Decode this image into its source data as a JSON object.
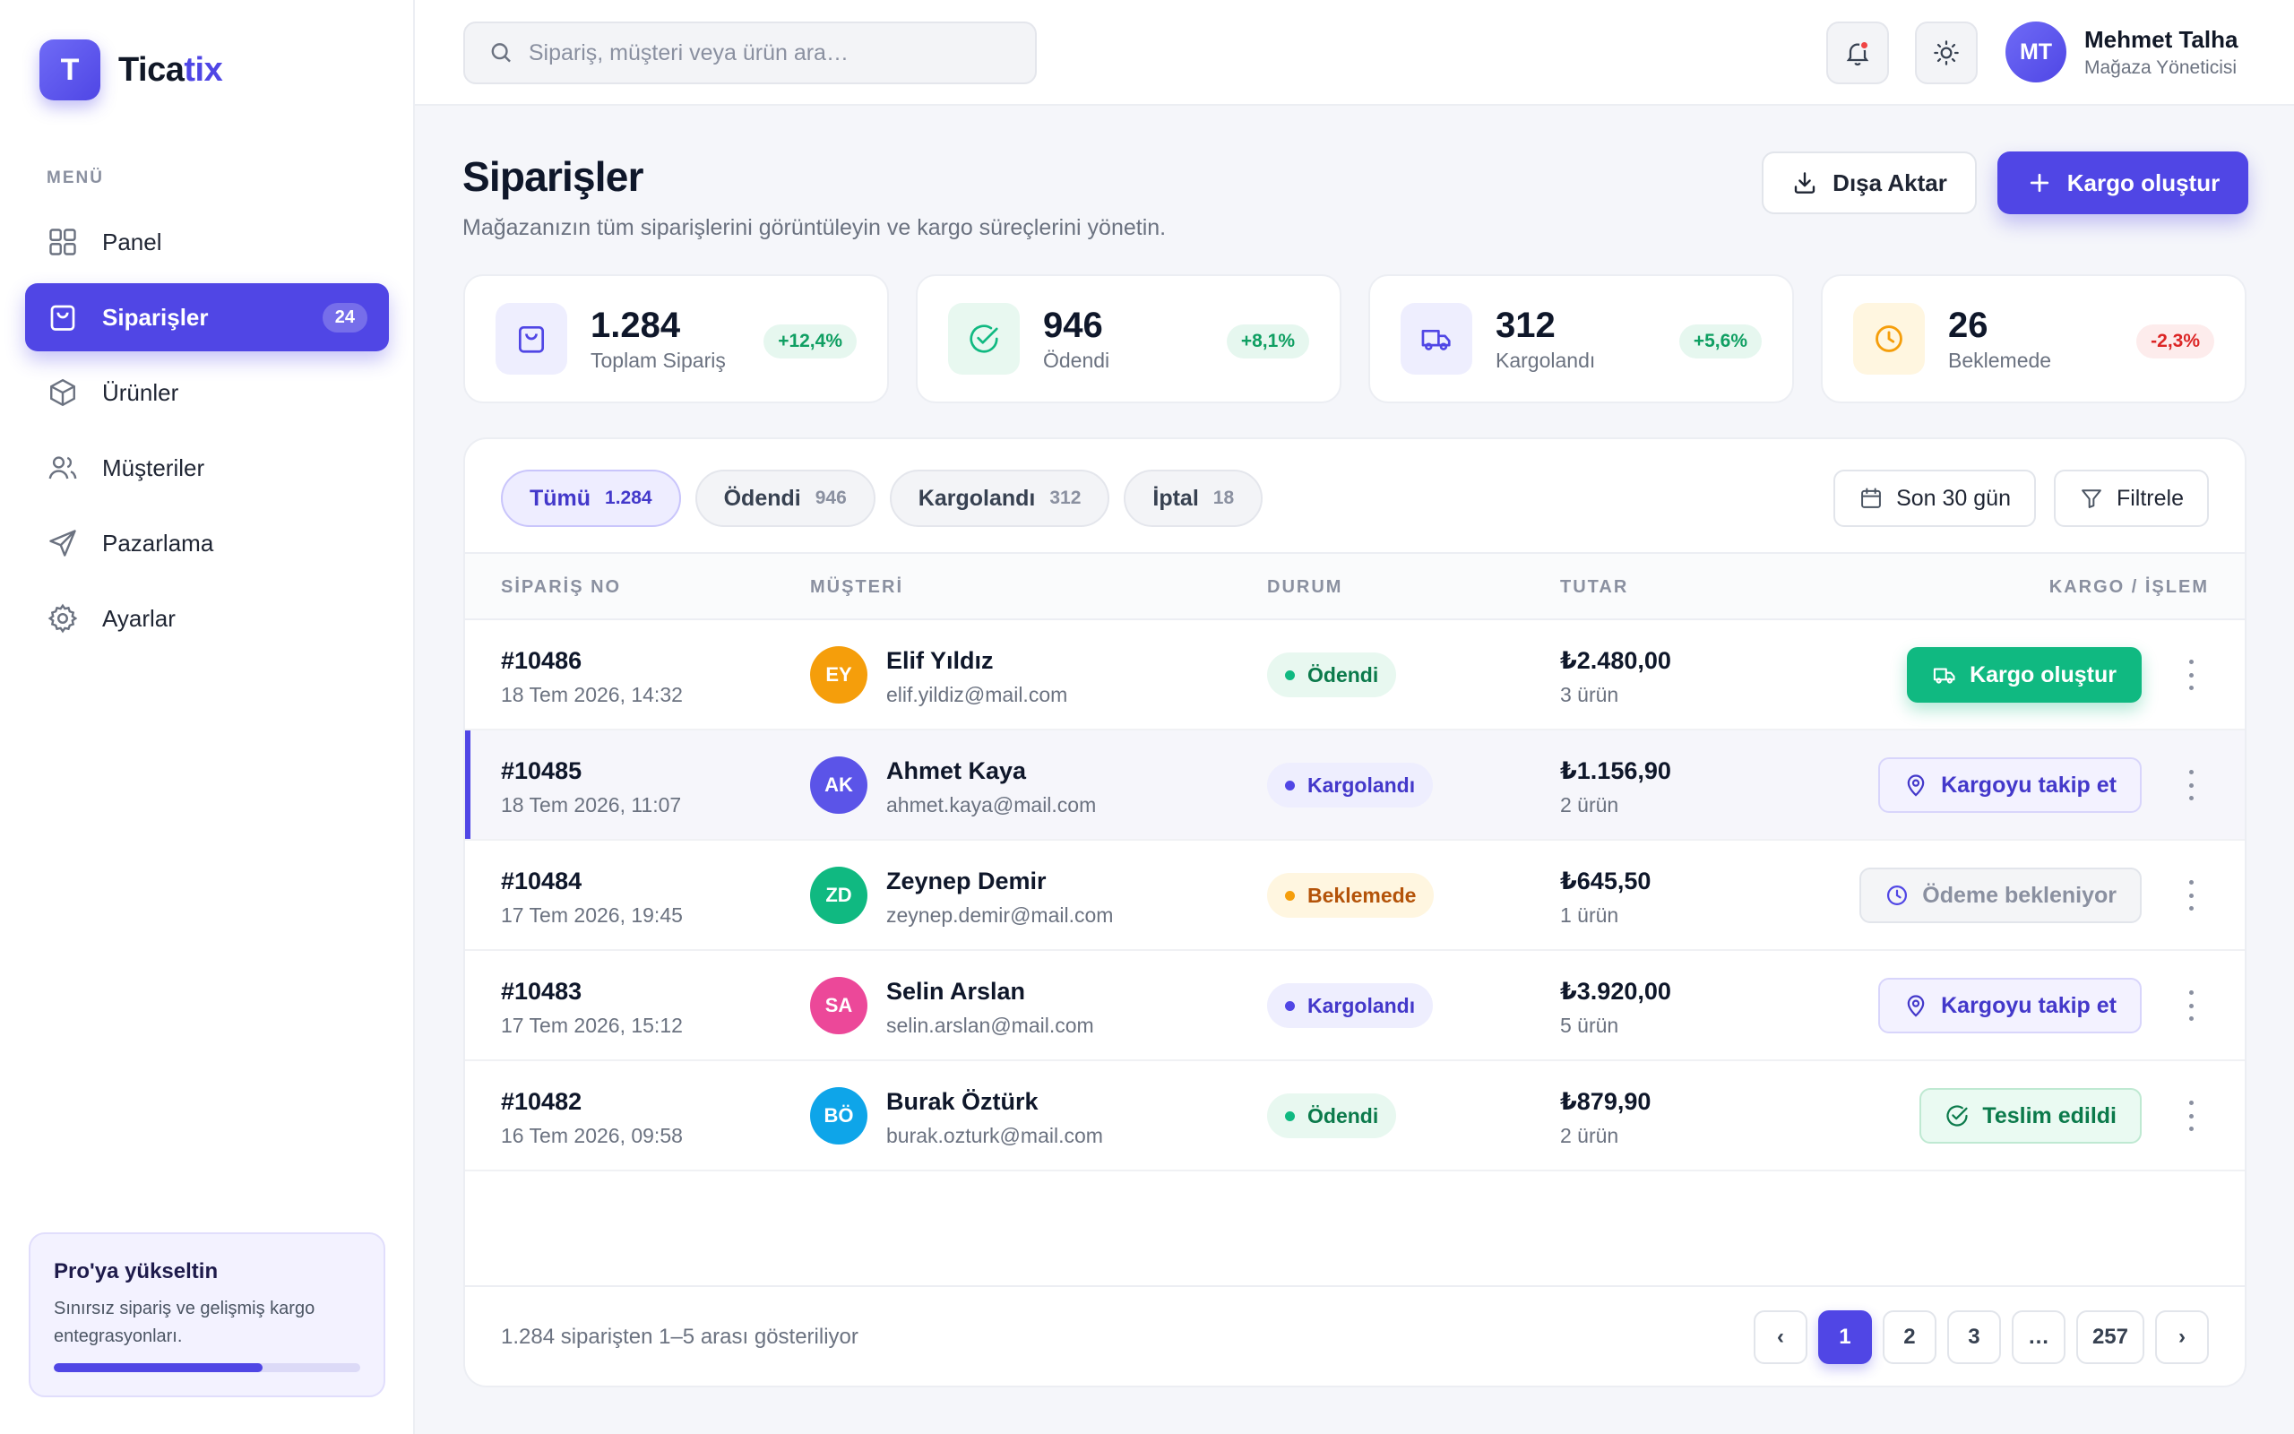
{
  "brand": {
    "mark": "T",
    "name_main": "Tica",
    "name_accent": "tix",
    "accent_color": "#4f46e5"
  },
  "sidebar": {
    "caption": "MENÜ",
    "items": [
      {
        "label": "Panel",
        "icon": "grid-icon"
      },
      {
        "label": "Siparişler",
        "icon": "shopping-bag-icon",
        "badge": "24",
        "active": true
      },
      {
        "label": "Ürünler",
        "icon": "box-icon"
      },
      {
        "label": "Müşteriler",
        "icon": "users-icon"
      },
      {
        "label": "Pazarlama",
        "icon": "send-icon"
      },
      {
        "label": "Ayarlar",
        "icon": "gear-icon"
      }
    ],
    "promo": {
      "title": "Pro'ya yükseltin",
      "text": "Sınırsız sipariş ve gelişmiş kargo entegrasyonları.",
      "progress": 0.68
    }
  },
  "topbar": {
    "search_placeholder": "Sipariş, müşteri veya ürün ara…",
    "user": {
      "initials": "MT",
      "name": "Mehmet Talha",
      "role": "Mağaza Yöneticisi"
    }
  },
  "page": {
    "title": "Siparişler",
    "subtitle": "Mağazanızın tüm siparişlerini görüntüleyin ve kargo süreçlerini yönetin.",
    "export_label": "Dışa Aktar",
    "primary_label": "Kargo oluştur"
  },
  "stats": [
    {
      "value": "1.284",
      "label": "Toplam Sipariş",
      "delta": "+12,4%",
      "trend": "up",
      "icon": "shopping-bag-icon",
      "color": "#5046e5"
    },
    {
      "value": "946",
      "label": "Ödendi",
      "delta": "+8,1%",
      "trend": "up",
      "icon": "check-circle-icon",
      "color": "#10b981"
    },
    {
      "value": "312",
      "label": "Kargolandı",
      "delta": "+5,6%",
      "trend": "up",
      "icon": "truck-icon",
      "color": "#5046e5"
    },
    {
      "value": "26",
      "label": "Beklemede",
      "delta": "-2,3%",
      "trend": "down",
      "icon": "clock-icon",
      "color": "#f59e0b"
    }
  ],
  "tabs": [
    {
      "label": "Tümü",
      "count": "1.284",
      "active": true
    },
    {
      "label": "Ödendi",
      "count": "946"
    },
    {
      "label": "Kargolandı",
      "count": "312"
    },
    {
      "label": "İptal",
      "count": "18"
    }
  ],
  "tools": {
    "date_range": "Son 30 gün",
    "filter": "Filtrele"
  },
  "table": {
    "headers": {
      "order": "SİPARİŞ NO",
      "customer": "MÜŞTERİ",
      "status": "DURUM",
      "amount": "TUTAR",
      "action": "KARGO / İŞLEM"
    },
    "rows": [
      {
        "order_no": "#10486",
        "date": "18 Tem 2026, 14:32",
        "initials": "EY",
        "avatar_color": "#f59e0b",
        "name": "Elif Yıldız",
        "email": "elif.yildiz@mail.com",
        "status": "Ödendi",
        "status_kind": "paid",
        "amount": "₺2.480,00",
        "items": "3 ürün",
        "action": "Kargo oluştur",
        "action_kind": "create"
      },
      {
        "order_no": "#10485",
        "date": "18 Tem 2026, 11:07",
        "initials": "AK",
        "avatar_color": "#5b54e8",
        "name": "Ahmet Kaya",
        "email": "ahmet.kaya@mail.com",
        "status": "Kargolandı",
        "status_kind": "shipped",
        "amount": "₺1.156,90",
        "items": "2 ürün",
        "action": "Kargoyu takip et",
        "action_kind": "track",
        "selected": true
      },
      {
        "order_no": "#10484",
        "date": "17 Tem 2026, 19:45",
        "initials": "ZD",
        "avatar_color": "#10b981",
        "name": "Zeynep Demir",
        "email": "zeynep.demir@mail.com",
        "status": "Beklemede",
        "status_kind": "pending",
        "amount": "₺645,50",
        "items": "1 ürün",
        "action": "Ödeme bekleniyor",
        "action_kind": "wait"
      },
      {
        "order_no": "#10483",
        "date": "17 Tem 2026, 15:12",
        "initials": "SA",
        "avatar_color": "#ec4899",
        "name": "Selin Arslan",
        "email": "selin.arslan@mail.com",
        "status": "Kargolandı",
        "status_kind": "shipped",
        "amount": "₺3.920,00",
        "items": "5 ürün",
        "action": "Kargoyu takip et",
        "action_kind": "track"
      },
      {
        "order_no": "#10482",
        "date": "16 Tem 2026, 09:58",
        "initials": "BÖ",
        "avatar_color": "#0ea5e9",
        "name": "Burak Öztürk",
        "email": "burak.ozturk@mail.com",
        "status": "Ödendi",
        "status_kind": "paid",
        "amount": "₺879,90",
        "items": "2 ürün",
        "action": "Teslim edildi",
        "action_kind": "done"
      }
    ]
  },
  "footer": {
    "summary": "1.284 siparişten 1–5 arası gösteriliyor",
    "pages": [
      "‹",
      "1",
      "2",
      "3",
      "…",
      "257",
      "›"
    ],
    "current_page": "1"
  }
}
